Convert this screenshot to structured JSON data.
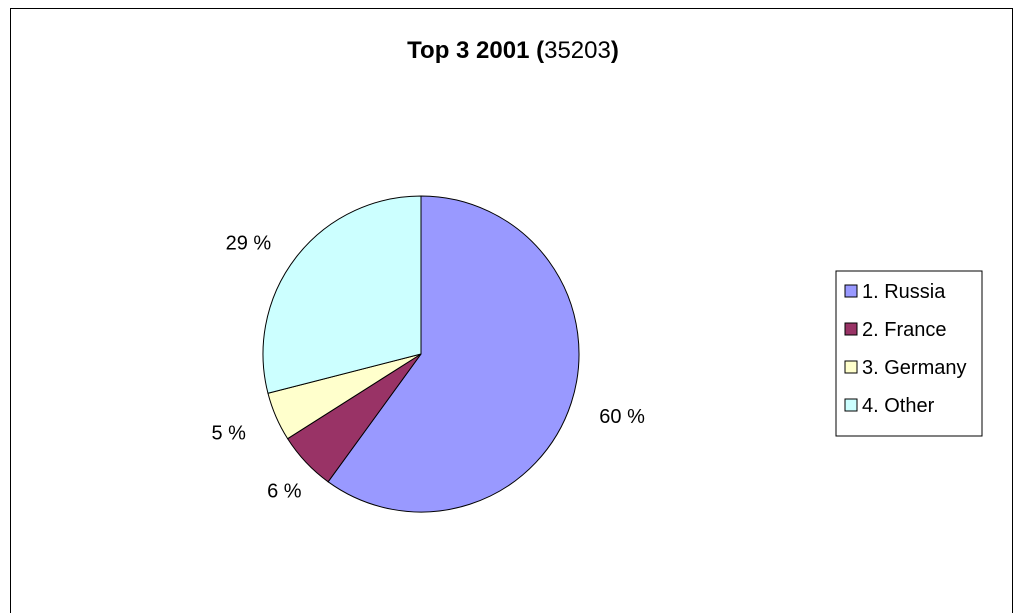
{
  "chart_data": {
    "type": "pie",
    "title": {
      "prefix": "Top 3 2001 (",
      "number": "35203",
      "suffix": ")"
    },
    "legend_position": "right",
    "slices": [
      {
        "label": "1. Russia",
        "value": 60,
        "pct_label": "60 %",
        "color": "#9999FF"
      },
      {
        "label": "2. France",
        "value": 6,
        "pct_label": "6 %",
        "color": "#993366"
      },
      {
        "label": "3. Germany",
        "value": 5,
        "pct_label": "5 %",
        "color": "#FFFFCC"
      },
      {
        "label": "4. Other",
        "value": 29,
        "pct_label": "29 %",
        "color": "#CCFFFF"
      }
    ]
  }
}
